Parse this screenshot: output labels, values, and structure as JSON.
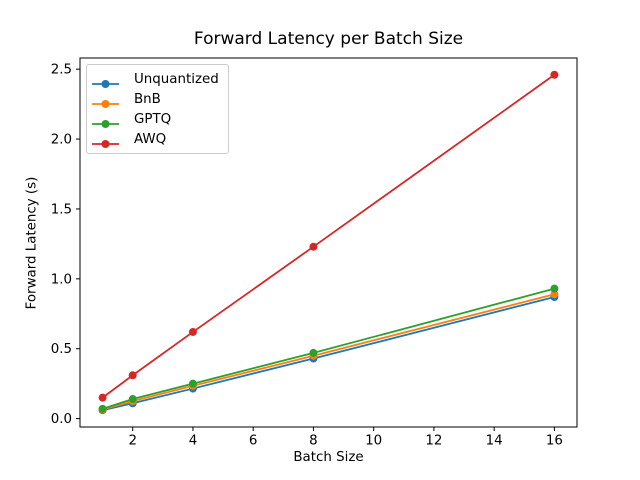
{
  "figure": {
    "background": "#ffffff",
    "axis_color": "#000000"
  },
  "chart_data": {
    "type": "line",
    "title": "Forward Latency per Batch Size",
    "xlabel": "Batch Size",
    "ylabel": "Forward Latency (s)",
    "x": [
      1,
      2,
      4,
      8,
      16
    ],
    "series": [
      {
        "name": "Unquantized",
        "color": "#1f77b4",
        "values": [
          0.06,
          0.11,
          0.215,
          0.43,
          0.87
        ]
      },
      {
        "name": "BnB",
        "color": "#ff7f0e",
        "values": [
          0.065,
          0.125,
          0.235,
          0.45,
          0.89
        ]
      },
      {
        "name": "GPTQ",
        "color": "#2ca02c",
        "values": [
          0.07,
          0.14,
          0.25,
          0.47,
          0.93
        ]
      },
      {
        "name": "AWQ",
        "color": "#d62728",
        "values": [
          0.15,
          0.31,
          0.62,
          1.23,
          2.46
        ]
      }
    ],
    "xlim": [
      0.25,
      16.75
    ],
    "ylim": [
      -0.06,
      2.58
    ],
    "xticks": [
      2,
      4,
      6,
      8,
      10,
      12,
      14,
      16
    ],
    "xtick_labels": [
      "2",
      "4",
      "6",
      "8",
      "10",
      "12",
      "14",
      "16"
    ],
    "yticks": [
      0.0,
      0.5,
      1.0,
      1.5,
      2.0,
      2.5
    ],
    "ytick_labels": [
      "0.0",
      "0.5",
      "1.0",
      "1.5",
      "2.0",
      "2.5"
    ],
    "grid": false,
    "legend_position": "upper left",
    "marker": "circle",
    "line_width": 1.8,
    "marker_radius": 4
  }
}
